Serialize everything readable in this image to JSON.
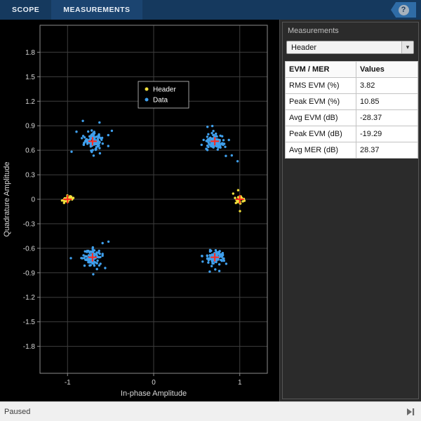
{
  "toolbar": {
    "tabs": [
      {
        "label": "SCOPE"
      },
      {
        "label": "MEASUREMENTS"
      }
    ],
    "help_label": "?"
  },
  "panel": {
    "title": "Measurements",
    "dropdown_value": "Header",
    "table": {
      "headers": [
        "EVM / MER",
        "Values"
      ],
      "rows": [
        [
          "RMS EVM (%)",
          "3.82"
        ],
        [
          "Peak EVM (%)",
          "10.85"
        ],
        [
          "Avg EVM (dB)",
          "-28.37"
        ],
        [
          "Peak EVM (dB)",
          "-19.29"
        ],
        [
          "Avg MER (dB)",
          "28.37"
        ]
      ]
    }
  },
  "status": {
    "text": "Paused"
  },
  "chart_data": {
    "type": "scatter",
    "title": "",
    "xlabel": "In-phase Amplitude",
    "ylabel": "Quadrature Amplitude",
    "xlim": [
      -1.32,
      1.32
    ],
    "ylim": [
      -2.13,
      2.13
    ],
    "x_ticks": [
      -1,
      0,
      1
    ],
    "y_ticks": [
      -1.8,
      -1.5,
      -1.2,
      -0.9,
      -0.6,
      -0.3,
      0,
      0.3,
      0.6,
      0.9,
      1.2,
      1.5,
      1.8
    ],
    "grid": true,
    "legend": {
      "position": "upper-center",
      "entries": [
        "Header",
        "Data"
      ]
    },
    "colors": {
      "header": "#f2e03c",
      "data": "#3f9fec",
      "reference": "#ff2a1f",
      "plot_bg": "#000000"
    },
    "series": [
      {
        "name": "Header",
        "color": "#f2e03c",
        "clusters": [
          {
            "cx": -1.0,
            "cy": 0.0,
            "count": 26,
            "sx": 0.035,
            "sy": 0.025
          },
          {
            "cx": 1.0,
            "cy": 0.0,
            "count": 26,
            "sx": 0.02,
            "sy": 0.03
          }
        ]
      },
      {
        "name": "Data",
        "color": "#3f9fec",
        "clusters": [
          {
            "cx": -0.71,
            "cy": 0.71,
            "count": 115,
            "sx": 0.05,
            "sy": 0.045
          },
          {
            "cx": 0.71,
            "cy": 0.71,
            "count": 115,
            "sx": 0.05,
            "sy": 0.045
          },
          {
            "cx": -0.71,
            "cy": -0.71,
            "count": 115,
            "sx": 0.05,
            "sy": 0.045
          },
          {
            "cx": 0.71,
            "cy": -0.71,
            "count": 115,
            "sx": 0.05,
            "sy": 0.045
          }
        ]
      }
    ],
    "reference_points": [
      [
        -0.71,
        0.71
      ],
      [
        0.71,
        0.71
      ],
      [
        -0.71,
        -0.71
      ],
      [
        0.71,
        -0.71
      ],
      [
        -1,
        0
      ],
      [
        1,
        0
      ]
    ]
  }
}
